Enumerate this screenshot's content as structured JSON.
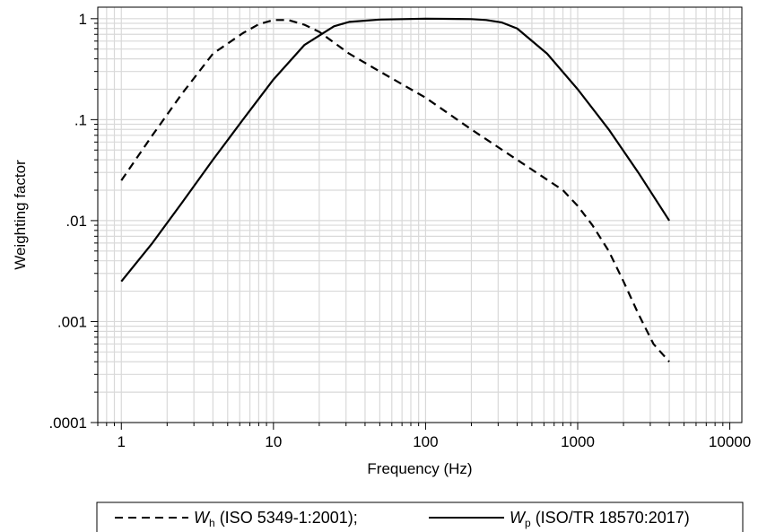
{
  "chart_data": {
    "type": "line",
    "xlabel": "Frequency (Hz)",
    "ylabel": "Weighting factor",
    "x_scale": "log",
    "y_scale": "log",
    "xlim": [
      0.7,
      12000
    ],
    "ylim": [
      0.0001,
      1.3
    ],
    "x_ticks": [
      1,
      10,
      100,
      1000,
      10000
    ],
    "x_tick_labels": [
      "1",
      "10",
      "100",
      "1000",
      "10000"
    ],
    "y_ticks": [
      0.0001,
      0.001,
      0.01,
      0.1,
      1
    ],
    "y_tick_labels": [
      ".0001",
      ".001",
      ".01",
      ".1",
      "1"
    ],
    "grid": true,
    "legend_position": "bottom",
    "series": [
      {
        "legend_label": "W",
        "legend_sub": "h",
        "legend_rest": " (ISO 5349-1:2001);",
        "style": "dashed",
        "color": "#000000",
        "x": [
          1,
          1.6,
          2.5,
          4,
          6.3,
          8,
          10,
          12.5,
          16,
          20,
          25,
          31.5,
          50,
          100,
          200,
          400,
          800,
          1000,
          1250,
          1600,
          2000,
          2500,
          3150,
          4000
        ],
        "y": [
          0.025,
          0.07,
          0.18,
          0.45,
          0.72,
          0.88,
          0.97,
          0.97,
          0.87,
          0.74,
          0.58,
          0.45,
          0.3,
          0.165,
          0.08,
          0.04,
          0.02,
          0.014,
          0.009,
          0.005,
          0.0025,
          0.0012,
          0.0006,
          0.0004
        ]
      },
      {
        "legend_label": "W",
        "legend_sub": "p",
        "legend_rest": " (ISO/TR 18570:2017)",
        "style": "solid",
        "color": "#000000",
        "x": [
          1,
          1.6,
          2.5,
          4,
          6.3,
          10,
          16,
          25,
          31.5,
          50,
          100,
          200,
          250,
          315,
          400,
          630,
          1000,
          1600,
          2500,
          4000
        ],
        "y": [
          0.0025,
          0.006,
          0.015,
          0.04,
          0.1,
          0.25,
          0.55,
          0.84,
          0.93,
          0.98,
          1.0,
          0.99,
          0.97,
          0.92,
          0.8,
          0.45,
          0.2,
          0.08,
          0.03,
          0.01
        ]
      }
    ]
  }
}
